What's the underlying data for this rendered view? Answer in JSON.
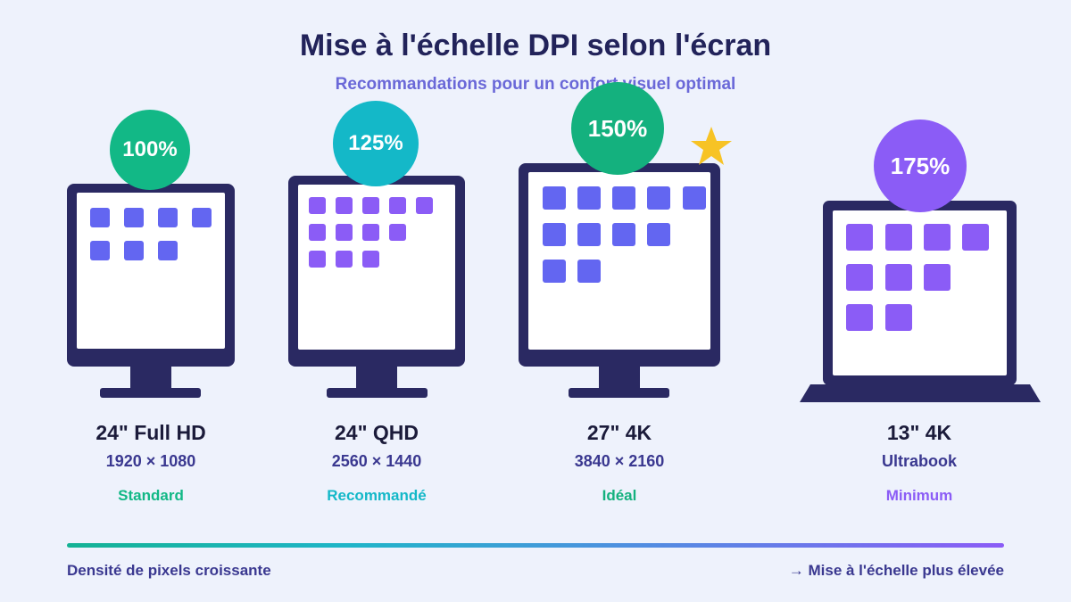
{
  "header": {
    "title": "Mise à l'échelle DPI selon l'écran",
    "subtitle": "Recommandations pour un confort visuel optimal"
  },
  "devices": [
    {
      "name": "24\" Full HD",
      "resolution": "1920 × 1080",
      "scale": "100%",
      "recommendation": "Standard",
      "color": "#12b886"
    },
    {
      "name": "24\" QHD",
      "resolution": "2560 × 1440",
      "scale": "125%",
      "recommendation": "Recommandé",
      "color": "#14b8c8"
    },
    {
      "name": "27\" 4K",
      "resolution": "3840 × 2160",
      "scale": "150%",
      "recommendation": "Idéal",
      "color": "#14b17e",
      "starred": true
    },
    {
      "name": "13\" 4K",
      "resolution": "Ultrabook",
      "scale": "175%",
      "recommendation": "Minimum",
      "color": "#8b5cf6"
    }
  ],
  "footer": {
    "left": "Densité de pixels croissante",
    "right": "→ Mise à l'échelle plus élevée"
  },
  "colors": {
    "frame": "#2a2962",
    "tile_blue": "#6366f1",
    "tile_purple": "#8b5cf6",
    "star": "#f7c325"
  }
}
